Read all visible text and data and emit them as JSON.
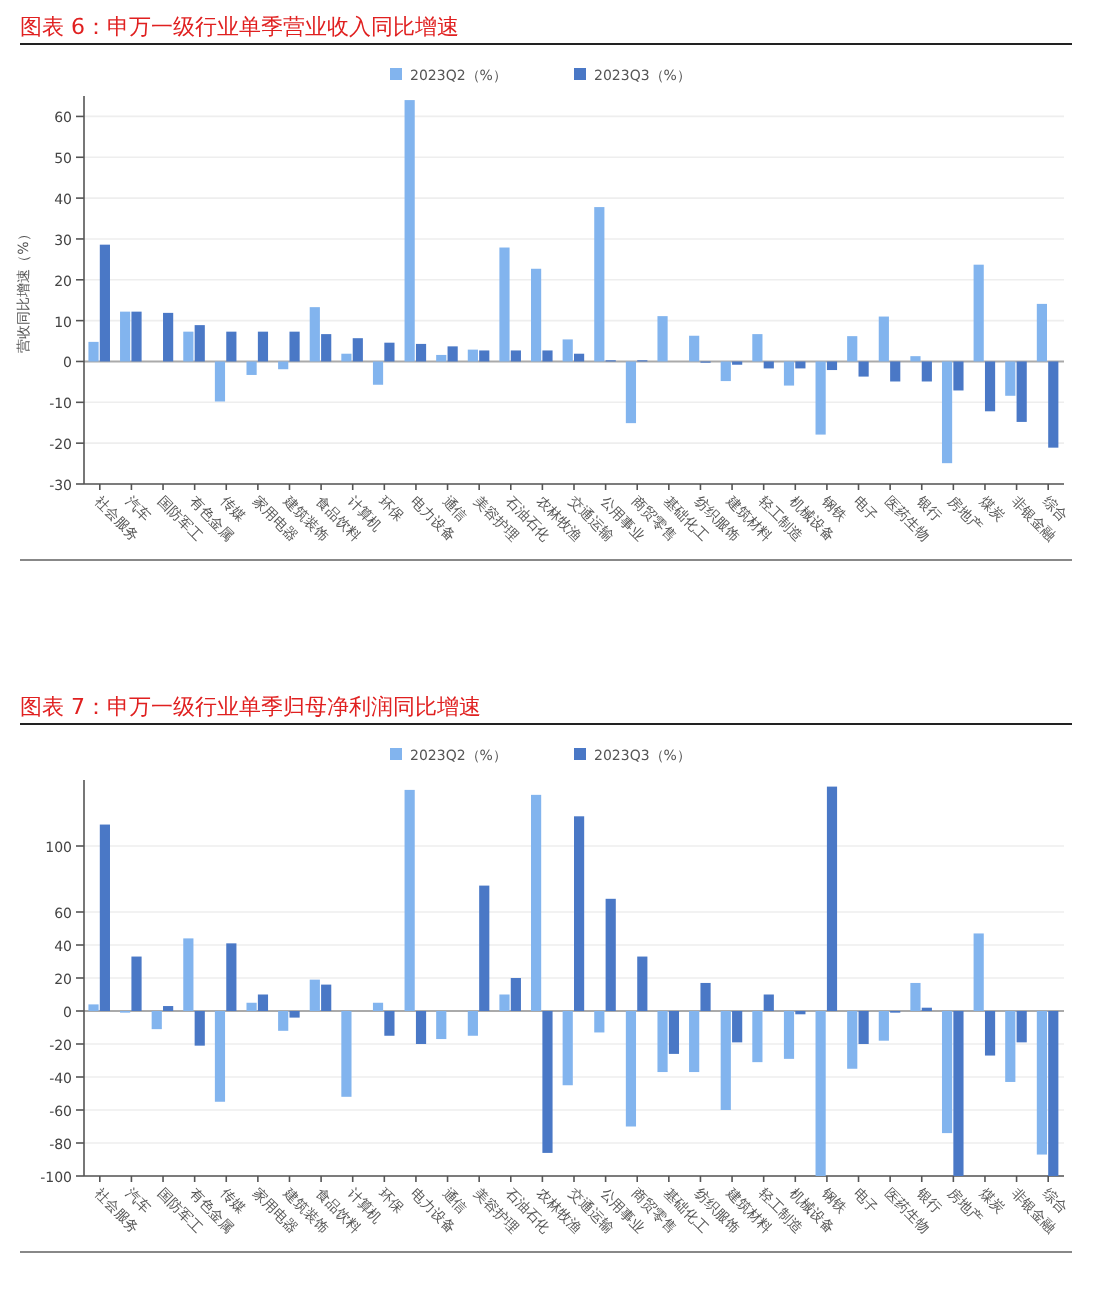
{
  "chart_data": [
    {
      "type": "bar",
      "title": "图表 6：申万一级行业单季营业收入同比增速",
      "ylabel": "营收同比增速（%）",
      "categories": [
        "社会服务",
        "汽车",
        "国防军工",
        "有色金属",
        "传媒",
        "家用电器",
        "建筑装饰",
        "食品饮料",
        "计算机",
        "环保",
        "电力设备",
        "通信",
        "美容护理",
        "石油石化",
        "农林牧渔",
        "交通运输",
        "公用事业",
        "商贸零售",
        "基础化工",
        "纺织服饰",
        "建筑材料",
        "轻工制造",
        "机械设备",
        "钢铁",
        "电子",
        "医药生物",
        "银行",
        "房地产",
        "煤炭",
        "非银金融",
        "综合"
      ],
      "series": [
        {
          "name": "2023Q2（%）",
          "color": "#82b4ee",
          "values": [
            4.8,
            12.2,
            0,
            7.3,
            -9.8,
            -3.3,
            -1.9,
            13.3,
            1.9,
            -5.7,
            64.0,
            1.6,
            2.9,
            27.9,
            22.7,
            5.4,
            37.8,
            -15.1,
            11.1,
            6.3,
            -4.8,
            6.7,
            -5.9,
            -17.9,
            6.2,
            11.0,
            1.3,
            -24.9,
            23.7,
            -8.4,
            14.1
          ]
        },
        {
          "name": "2023Q3（%）",
          "color": "#4a78c6",
          "values": [
            28.6,
            12.2,
            11.9,
            8.9,
            7.3,
            7.3,
            7.3,
            6.7,
            5.7,
            4.6,
            4.3,
            3.7,
            2.7,
            2.7,
            2.7,
            1.9,
            0.3,
            0.3,
            null,
            -0.3,
            -0.8,
            -1.7,
            -1.7,
            -2.1,
            -3.7,
            -4.9,
            -4.9,
            -7.1,
            -12.2,
            -14.8,
            -21.1
          ]
        }
      ],
      "ylim": [
        -30,
        65
      ],
      "yticks": [
        -30,
        -20,
        -10,
        0,
        10,
        20,
        30,
        40,
        50,
        60
      ],
      "grid": "y",
      "legend": "top"
    },
    {
      "type": "bar",
      "title": "图表 7：申万一级行业单季归母净利润同比增速",
      "categories": [
        "社会服务",
        "汽车",
        "国防军工",
        "有色金属",
        "传媒",
        "家用电器",
        "建筑装饰",
        "食品饮料",
        "计算机",
        "环保",
        "电力设备",
        "通信",
        "美容护理",
        "石油石化",
        "农林牧渔",
        "交通运输",
        "公用事业",
        "商贸零售",
        "基础化工",
        "纺织服饰",
        "建筑材料",
        "轻工制造",
        "机械设备",
        "钢铁",
        "电子",
        "医药生物",
        "银行",
        "房地产",
        "煤炭",
        "非银金融",
        "综合"
      ],
      "series": [
        {
          "name": "2023Q2（%）",
          "color": "#82b4ee",
          "values": [
            4,
            -1,
            -11,
            44,
            -55,
            5,
            -12,
            19,
            -52,
            5,
            134,
            -17,
            -15,
            10,
            131,
            -45,
            -13,
            -70,
            -37,
            -37,
            -60,
            -31,
            -29,
            -100,
            -35,
            -18,
            17,
            -74,
            47,
            -43,
            -87
          ]
        },
        {
          "name": "2023Q3（%）",
          "color": "#4a78c6",
          "values": [
            113,
            33,
            3,
            -21,
            41,
            10,
            -4,
            16,
            0,
            -15,
            -20,
            0,
            76,
            20,
            -86,
            118,
            68,
            33,
            -26,
            17,
            -19,
            10,
            -2,
            136,
            -20,
            -1,
            2,
            -100,
            -27,
            -19,
            -100
          ]
        }
      ],
      "ylim": [
        -100,
        140
      ],
      "yticks": [
        -100,
        -80,
        -60,
        -40,
        -20,
        0,
        20,
        40,
        60,
        100
      ],
      "grid": "y",
      "legend": "top"
    }
  ]
}
